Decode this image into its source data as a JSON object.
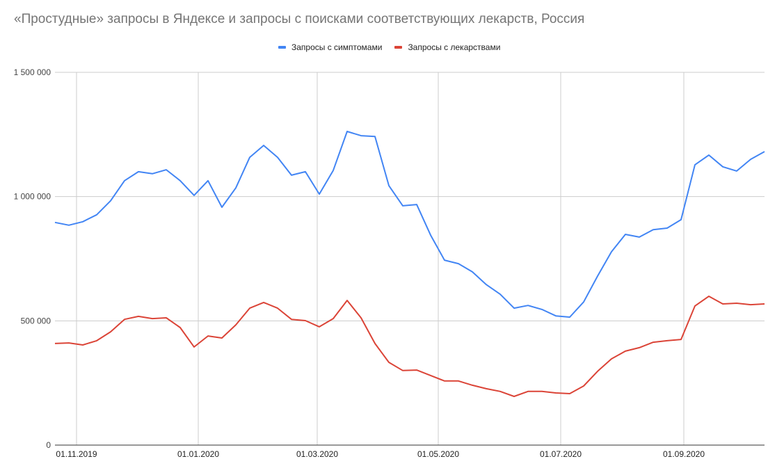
{
  "title": "«Простудные» запросы в Яндексе и запросы с поисками соответствующих лекарств, Россия",
  "legend": [
    {
      "label": "Запросы с симптомами",
      "color": "#4285f4"
    },
    {
      "label": "Запросы с лекарствами",
      "color": "#db4437"
    }
  ],
  "chart_data": {
    "type": "line",
    "title": "«Простудные» запросы в Яндексе и запросы с поисками соответствующих лекарств, Россия",
    "xlabel": "",
    "ylabel": "",
    "ylim": [
      0,
      1500000
    ],
    "yticks": [
      "0",
      "500 000",
      "1 000 000",
      "1 500 000"
    ],
    "xticks": [
      "01.11.2019",
      "01.01.2020",
      "01.03.2020",
      "01.05.2020",
      "01.07.2020",
      "01.09.2020"
    ],
    "grid": true,
    "legend_position": "top",
    "x_note": "weekly data, ~27.10.2019 to ~18.10.2020",
    "series": [
      {
        "name": "Запросы с симптомами",
        "color": "#4285f4",
        "values": [
          896000,
          885000,
          899000,
          927000,
          983000,
          1064000,
          1100000,
          1092000,
          1108000,
          1064000,
          1005000,
          1064000,
          957000,
          1035000,
          1158000,
          1206000,
          1158000,
          1086000,
          1100000,
          1010000,
          1105000,
          1262000,
          1245000,
          1242000,
          1044000,
          963000,
          968000,
          845000,
          744000,
          730000,
          697000,
          646000,
          607000,
          551000,
          562000,
          546000,
          520000,
          515000,
          576000,
          680000,
          778000,
          848000,
          837000,
          867000,
          873000,
          907000,
          1128000,
          1167000,
          1120000,
          1103000,
          1150000,
          1181000
        ]
      },
      {
        "name": "Запросы с лекарствами",
        "color": "#db4437",
        "values": [
          409000,
          411000,
          403000,
          420000,
          456000,
          506000,
          518000,
          509000,
          512000,
          473000,
          395000,
          439000,
          431000,
          484000,
          551000,
          574000,
          551000,
          506000,
          501000,
          476000,
          509000,
          582000,
          512000,
          409000,
          333000,
          300000,
          302000,
          280000,
          258000,
          258000,
          241000,
          227000,
          216000,
          196000,
          216000,
          216000,
          210000,
          207000,
          238000,
          297000,
          347000,
          378000,
          392000,
          414000,
          420000,
          425000,
          560000,
          599000,
          568000,
          571000,
          565000,
          568000
        ]
      }
    ]
  }
}
